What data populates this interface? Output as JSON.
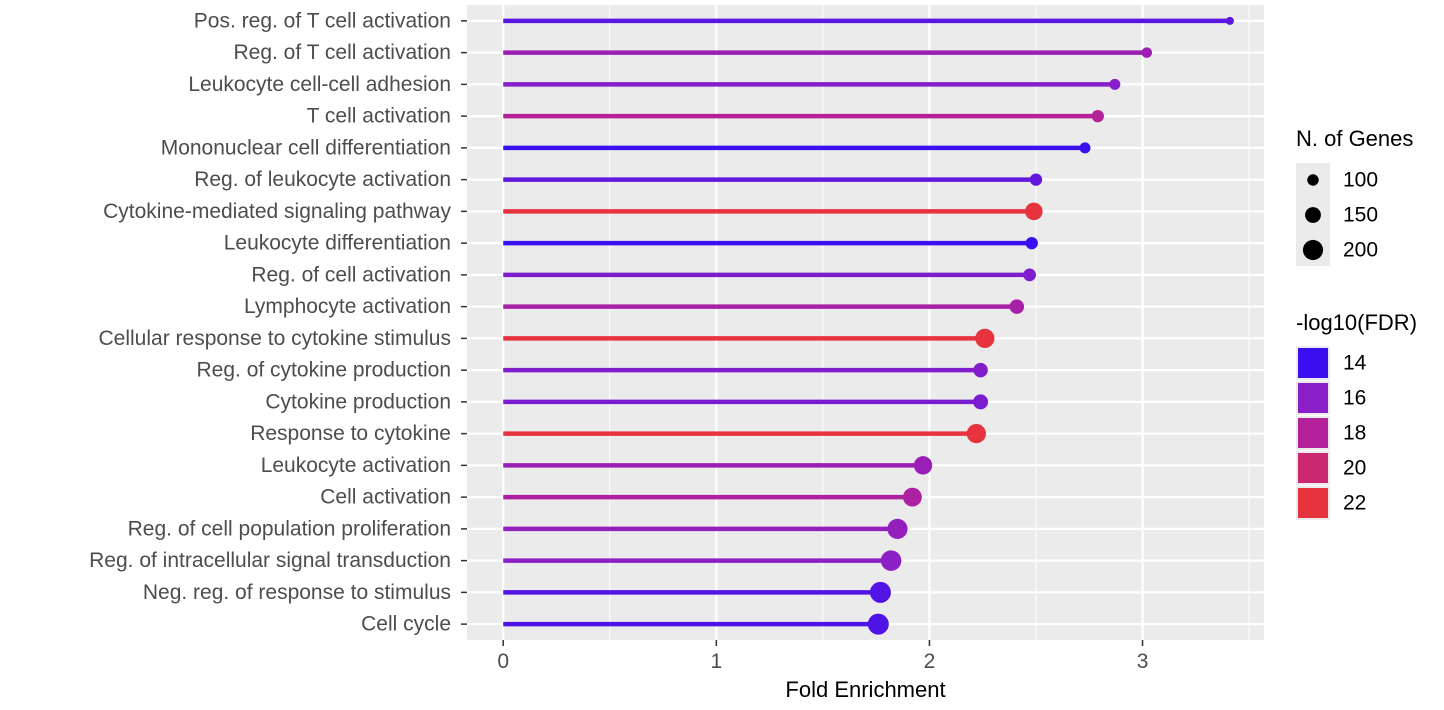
{
  "chart_data": {
    "type": "lollipop",
    "xlabel": "Fold Enrichment",
    "xlim": [
      -0.17,
      3.57
    ],
    "xticks": [
      0,
      1,
      2,
      3
    ],
    "grid": true,
    "legend_placement": "right",
    "categories": [
      "Pos. reg. of T cell activation",
      "Reg. of T cell activation",
      "Leukocyte cell-cell adhesion",
      "T cell activation",
      "Mononuclear cell differentiation",
      "Reg. of leukocyte activation",
      "Cytokine-mediated signaling pathway",
      "Leukocyte differentiation",
      "Reg. of cell activation",
      "Lymphocyte activation",
      "Cellular response to cytokine stimulus",
      "Reg. of cytokine production",
      "Cytokine production",
      "Response to cytokine",
      "Leukocyte activation",
      "Cell activation",
      "Reg. of cell population proliferation",
      "Reg. of intracellular signal transduction",
      "Neg. reg. of response to stimulus",
      "Cell cycle"
    ],
    "fold_enrichment": [
      3.41,
      3.02,
      2.87,
      2.79,
      2.73,
      2.5,
      2.49,
      2.48,
      2.47,
      2.41,
      2.26,
      2.24,
      2.24,
      2.22,
      1.97,
      1.92,
      1.85,
      1.82,
      1.77,
      1.76
    ],
    "n_genes": [
      60,
      90,
      95,
      110,
      95,
      110,
      170,
      110,
      115,
      135,
      190,
      135,
      140,
      190,
      180,
      185,
      200,
      205,
      210,
      210
    ],
    "neg_log10_fdr": [
      14.8,
      16.9,
      15.9,
      18.2,
      12.5,
      15.0,
      22.5,
      12.8,
      15.7,
      17.5,
      22.8,
      15.8,
      15.6,
      22.6,
      16.8,
      17.7,
      16.5,
      16.1,
      14.6,
      14.5
    ],
    "size_legend": {
      "title": "N. of Genes",
      "values": [
        100,
        150,
        200
      ]
    },
    "color_legend": {
      "title": "-log10(FDR)",
      "values": [
        14,
        16,
        18,
        20,
        22
      ],
      "colors": [
        "#3a0ff0",
        "#8a1fc8",
        "#b2209a",
        "#cc2870",
        "#e6333e"
      ]
    }
  }
}
